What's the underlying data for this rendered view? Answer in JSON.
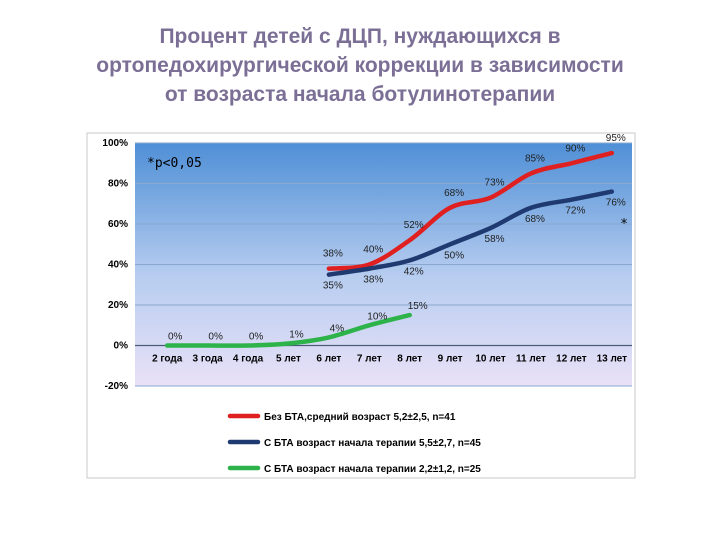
{
  "title_lines": [
    "Процент детей с ДЦП, нуждающихся в",
    "ортопедохирургической коррекции в зависимости",
    "от возраста начала ботулинотерапии"
  ],
  "chart_data": {
    "type": "line",
    "categories": [
      "2 года",
      "3 года",
      "4 года",
      "5 лет",
      "6 лет",
      "7 лет",
      "8 лет",
      "9 лет",
      "10 лет",
      "11 лет",
      "12 лет",
      "13 лет"
    ],
    "ylim": [
      -20,
      100
    ],
    "yticks": [
      "100%",
      "80%",
      "60%",
      "40%",
      "20%",
      "0%",
      "-20%"
    ],
    "ytick_values": [
      100,
      80,
      60,
      40,
      20,
      0,
      -20
    ],
    "grid": true,
    "legend_position": "bottom",
    "annotation": "*p<0,05",
    "annotation_star": "*",
    "series": [
      {
        "name": "Без БТА,средний возраст 5,2±2,5, n=41",
        "color": "#e02020",
        "values": [
          null,
          null,
          null,
          null,
          38,
          40,
          52,
          68,
          73,
          85,
          90,
          95
        ],
        "labels": [
          "",
          "",
          "",
          "",
          "38%",
          "40%",
          "52%",
          "68%",
          "73%",
          "85%",
          "90%",
          "95%"
        ]
      },
      {
        "name": "С БТА возраст начала терапии 5,5±2,7, n=45",
        "color": "#1f3a70",
        "values": [
          null,
          null,
          null,
          null,
          35,
          38,
          42,
          50,
          58,
          68,
          72,
          76
        ],
        "labels": [
          "",
          "",
          "",
          "",
          "35%",
          "38%",
          "42%",
          "50%",
          "58%",
          "68%",
          "72%",
          "76%"
        ]
      },
      {
        "name": "С БТА возраст начала терапии 2,2±1,2, n=25",
        "color": "#2db34a",
        "values": [
          0,
          0,
          0,
          1,
          4,
          10,
          15,
          null,
          null,
          null,
          null,
          null
        ],
        "labels": [
          "0%",
          "0%",
          "0%",
          "1%",
          "4%",
          "10%",
          "15%",
          "",
          "",
          "",
          "",
          ""
        ]
      }
    ]
  }
}
